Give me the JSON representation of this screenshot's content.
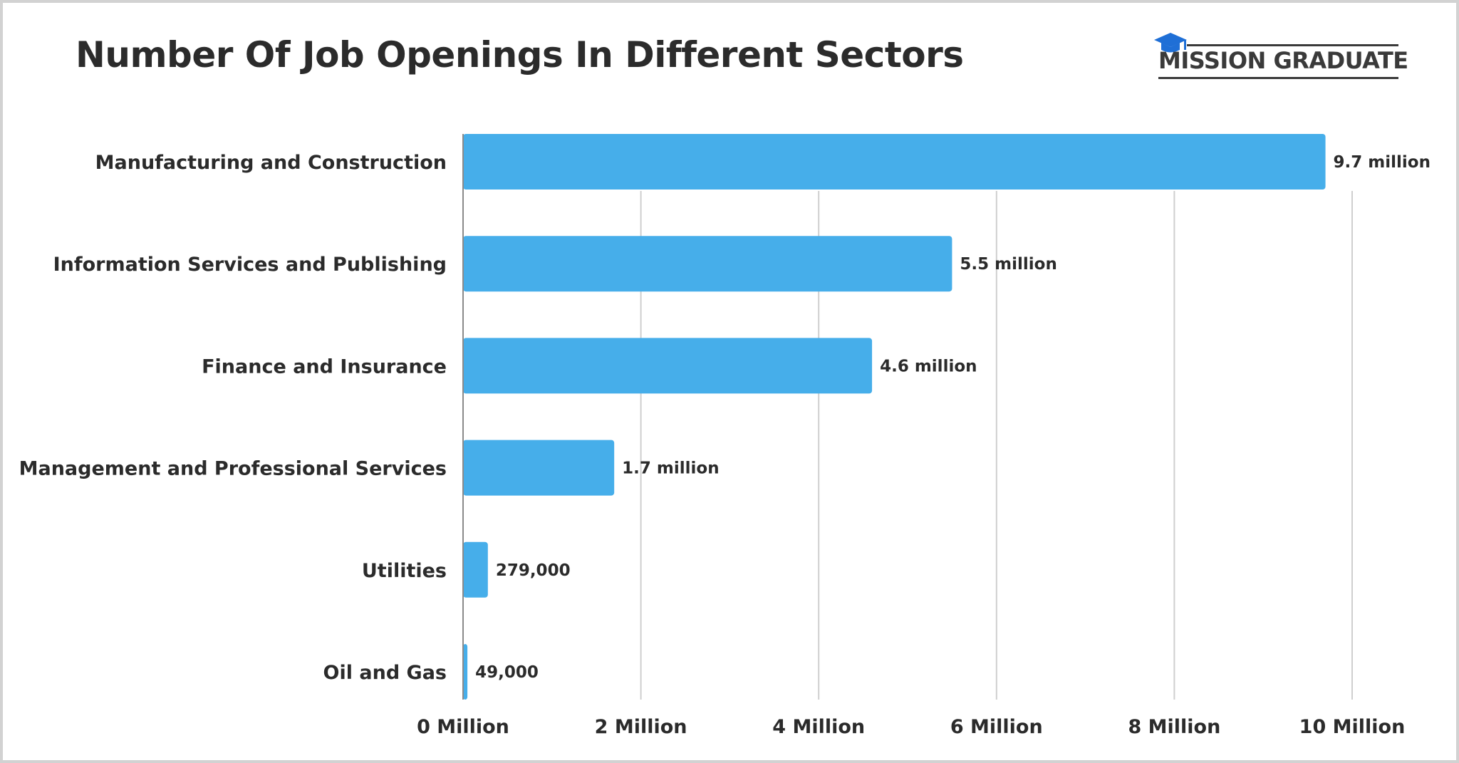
{
  "header": {
    "title": "Number Of Job Openings In Different Sectors"
  },
  "logo": {
    "text": "MISSION GRADUATE",
    "icon": "graduation-cap-icon",
    "icon_color": "#1f6fd6"
  },
  "colors": {
    "bar": "#46aeea",
    "grid": "#cfcfcf",
    "axis": "#8a8a8a",
    "text": "#2b2b2b"
  },
  "chart_data": {
    "type": "bar",
    "orientation": "horizontal",
    "title": "Number Of Job Openings In Different Sectors",
    "categories": [
      "Manufacturing and Construction",
      "Information Services and Publishing",
      "Finance and Insurance",
      "Management and Professional Services",
      "Utilities",
      "Oil and Gas"
    ],
    "values": [
      9700000,
      5500000,
      4600000,
      1700000,
      279000,
      49000
    ],
    "data_labels": [
      "9.7 million",
      "5.5 million",
      "4.6 million",
      "1.7 million",
      "279,000",
      "49,000"
    ],
    "xlim": [
      0,
      10000000
    ],
    "x_ticks": [
      0,
      2000000,
      4000000,
      6000000,
      8000000,
      10000000
    ],
    "x_tick_labels": [
      "0 Million",
      "2 Million",
      "4 Million",
      "6 Million",
      "8 Million",
      "10 Million"
    ],
    "grid": "vertical",
    "legend": "none"
  }
}
